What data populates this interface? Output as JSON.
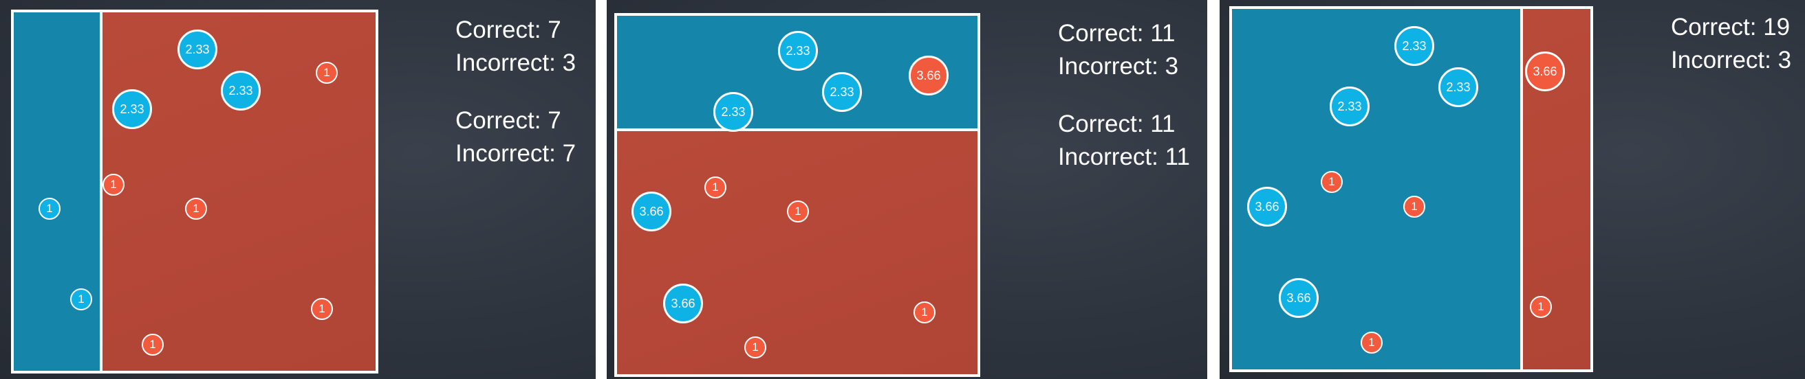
{
  "colors": {
    "background": "#2e343e",
    "blue_region": "#1685aa",
    "red_region": "#b94a3a",
    "blue_point": "#0eb2e4",
    "red_point": "#f25a3e",
    "border": "#ffffff"
  },
  "panels": [
    {
      "stats": [
        {
          "correct": "Correct: 7",
          "incorrect": "Incorrect: 3"
        },
        {
          "correct": "Correct: 7",
          "incorrect": "Incorrect: 7"
        }
      ],
      "points": [
        {
          "label": "2.33",
          "color": "blue"
        },
        {
          "label": "2.33",
          "color": "blue"
        },
        {
          "label": "2.33",
          "color": "blue"
        },
        {
          "label": "1",
          "color": "red"
        },
        {
          "label": "1",
          "color": "red"
        },
        {
          "label": "1",
          "color": "red"
        },
        {
          "label": "1",
          "color": "red"
        },
        {
          "label": "1",
          "color": "red"
        },
        {
          "label": "1",
          "color": "blue"
        },
        {
          "label": "1",
          "color": "blue"
        }
      ]
    },
    {
      "stats": [
        {
          "correct": "Correct: 11",
          "incorrect": "Incorrect: 3"
        },
        {
          "correct": "Correct: 11",
          "incorrect": "Incorrect: 11"
        }
      ],
      "points": [
        {
          "label": "2.33",
          "color": "blue"
        },
        {
          "label": "2.33",
          "color": "blue"
        },
        {
          "label": "2.33",
          "color": "blue"
        },
        {
          "label": "3.66",
          "color": "red"
        },
        {
          "label": "3.66",
          "color": "blue"
        },
        {
          "label": "3.66",
          "color": "blue"
        },
        {
          "label": "1",
          "color": "red"
        },
        {
          "label": "1",
          "color": "red"
        },
        {
          "label": "1",
          "color": "red"
        },
        {
          "label": "1",
          "color": "red"
        }
      ]
    },
    {
      "stats": [
        {
          "correct": "Correct: 19",
          "incorrect": "Incorrect: 3"
        }
      ],
      "points": [
        {
          "label": "2.33",
          "color": "blue"
        },
        {
          "label": "2.33",
          "color": "blue"
        },
        {
          "label": "2.33",
          "color": "blue"
        },
        {
          "label": "3.66",
          "color": "red"
        },
        {
          "label": "3.66",
          "color": "blue"
        },
        {
          "label": "3.66",
          "color": "blue"
        },
        {
          "label": "1",
          "color": "red"
        },
        {
          "label": "1",
          "color": "red"
        },
        {
          "label": "1",
          "color": "red"
        },
        {
          "label": "1",
          "color": "red"
        }
      ]
    }
  ]
}
